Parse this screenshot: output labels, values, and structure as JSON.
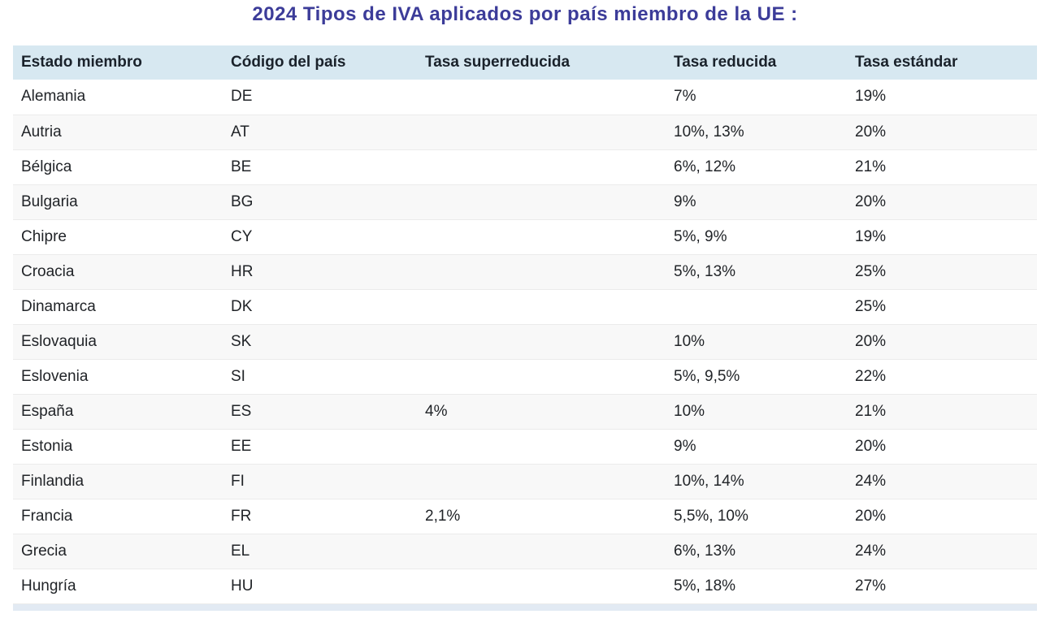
{
  "page": {
    "title": "2024 Tipos de IVA aplicados por país miembro de la UE :"
  },
  "colors": {
    "title_text": "#3c3c99",
    "header_background": "#d7e8f1",
    "row_stripe_background": "#f8f8f8",
    "row_border": "#ebebeb",
    "body_text": "#212428",
    "partial_next_row": "#e2eaf3"
  },
  "chart_data": {
    "type": "table",
    "title": "2024 Tipos de IVA aplicados por país miembro de la UE :",
    "columns": [
      "Estado miembro",
      "Código del país",
      "Tasa superreducida",
      "Tasa reducida",
      "Tasa estándar"
    ],
    "rows": [
      [
        "Alemania",
        "DE",
        "",
        "7%",
        "19%"
      ],
      [
        "Autria",
        "AT",
        "",
        "10%, 13%",
        "20%"
      ],
      [
        "Bélgica",
        "BE",
        "",
        "6%, 12%",
        "21%"
      ],
      [
        "Bulgaria",
        "BG",
        "",
        "9%",
        "20%"
      ],
      [
        "Chipre",
        "CY",
        "",
        "5%, 9%",
        "19%"
      ],
      [
        "Croacia",
        "HR",
        "",
        "5%, 13%",
        "25%"
      ],
      [
        "Dinamarca",
        "DK",
        "",
        "",
        "25%"
      ],
      [
        "Eslovaquia",
        "SK",
        "",
        "10%",
        "20%"
      ],
      [
        "Eslovenia",
        "SI",
        "",
        "5%, 9,5%",
        "22%"
      ],
      [
        "España",
        "ES",
        "4%",
        "10%",
        "21%"
      ],
      [
        "Estonia",
        "EE",
        "",
        "9%",
        "20%"
      ],
      [
        "Finlandia",
        "FI",
        "",
        "10%, 14%",
        "24%"
      ],
      [
        "Francia",
        "FR",
        "2,1%",
        "5,5%, 10%",
        "20%"
      ],
      [
        "Grecia",
        "EL",
        "",
        "6%, 13%",
        "24%"
      ],
      [
        "Hungría",
        "HU",
        "",
        "5%, 18%",
        "27%"
      ]
    ],
    "layout": {
      "striped_rows": true,
      "stripe_pattern": "even rows shaded",
      "header_style": "light blue band",
      "last_row_cut_off": true
    }
  }
}
